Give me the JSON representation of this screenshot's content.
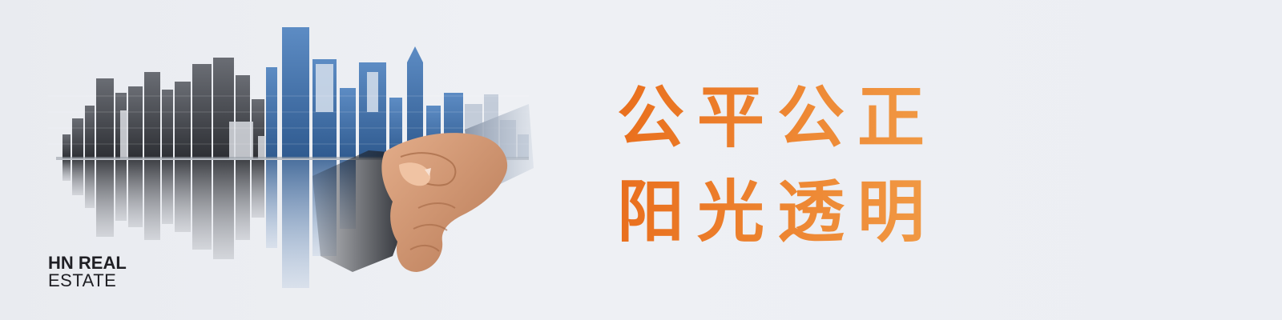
{
  "banner": {
    "slogan_line_1": "公平公正",
    "slogan_line_2": "阳光透明",
    "brand_line_1": "HN REAL",
    "brand_line_2": "ESTATE"
  },
  "visual": {
    "image": "city-skyline-reflection-with-handshake"
  },
  "colors": {
    "background": "#eceef3",
    "slogan_start": "#e96f1d",
    "slogan_end": "#f19a45",
    "brand_text": "#1f1f24",
    "skyline_dark": "#3d3f45",
    "skyline_blue": "#4f7fb8"
  }
}
